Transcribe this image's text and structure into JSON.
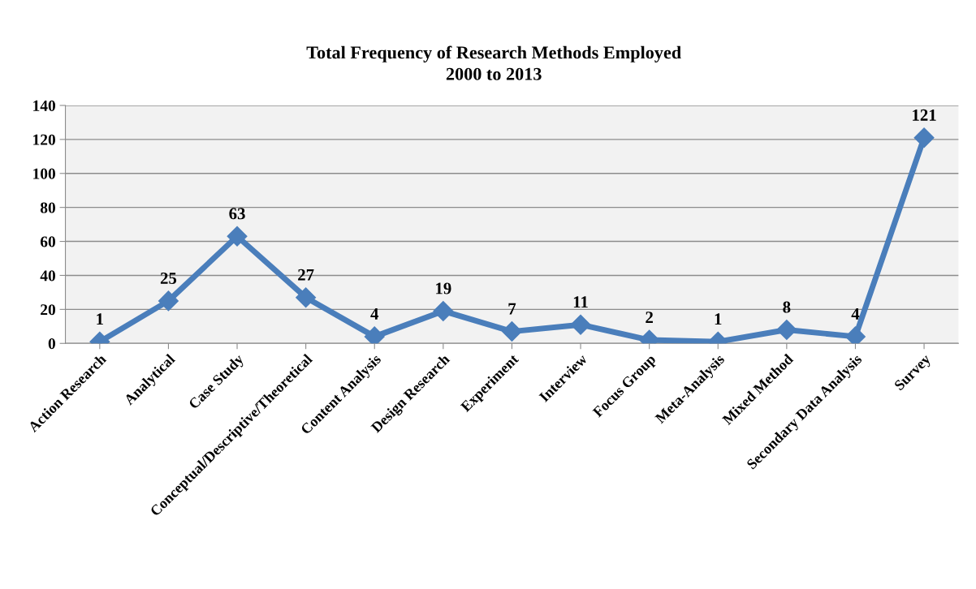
{
  "chart_data": {
    "type": "line",
    "title": "Total Frequency of Research Methods Employed\n2000 to 2013",
    "categories": [
      "Action Research",
      "Analytical",
      "Case Study",
      "Conceptual/Descriptive/Theoretical",
      "Content Analysis",
      "Design Research",
      "Experiment",
      "Interview",
      "Focus Group",
      "Meta-Analysis",
      "Mixed Method",
      "Secondary Data Analysis",
      "Survey"
    ],
    "values": [
      1,
      25,
      63,
      27,
      4,
      19,
      7,
      11,
      2,
      1,
      8,
      4,
      121
    ],
    "color": "#4a7ebb",
    "ylim": [
      0,
      140
    ],
    "yticks": [
      0,
      20,
      40,
      60,
      80,
      100,
      120,
      140
    ],
    "grid": "y",
    "marker": "diamond",
    "line_style": "solid",
    "data_labels": true
  }
}
